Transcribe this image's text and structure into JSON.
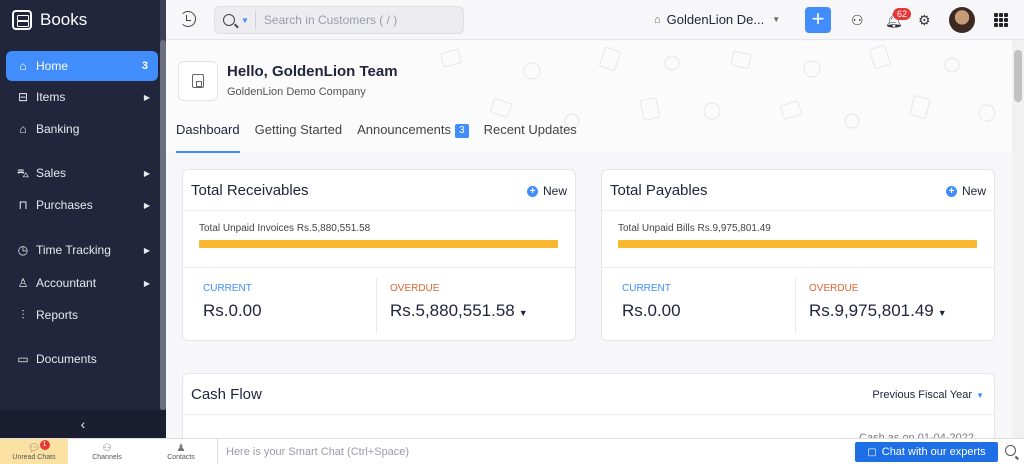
{
  "brand": {
    "name": "Books"
  },
  "sidebar": {
    "items": [
      {
        "label": "Home",
        "count": "3",
        "icon": "home-icon"
      },
      {
        "label": "Items",
        "icon": "items-icon"
      },
      {
        "label": "Banking",
        "icon": "bank-icon"
      },
      {
        "label": "Sales",
        "icon": "cart-icon"
      },
      {
        "label": "Purchases",
        "icon": "bag-icon"
      },
      {
        "label": "Time Tracking",
        "icon": "timer-icon"
      },
      {
        "label": "Accountant",
        "icon": "accountant-icon"
      },
      {
        "label": "Reports",
        "icon": "reports-icon"
      },
      {
        "label": "Documents",
        "icon": "folder-icon"
      }
    ],
    "collapse": "‹"
  },
  "header": {
    "search_placeholder": "Search in Customers ( / )",
    "org": "GoldenLion De...",
    "notif_count": "62"
  },
  "welcome": {
    "greeting": "Hello, GoldenLion Team",
    "org_name": "GoldenLion Demo Company"
  },
  "tabs": [
    {
      "label": "Dashboard"
    },
    {
      "label": "Getting Started"
    },
    {
      "label": "Announcements",
      "badge": "3"
    },
    {
      "label": "Recent Updates"
    }
  ],
  "receivables": {
    "title": "Total Receivables",
    "new_label": "New",
    "unpaid": "Total Unpaid Invoices Rs.5,880,551.58",
    "current_label": "CURRENT",
    "current": "Rs.0.00",
    "overdue_label": "OVERDUE",
    "overdue": "Rs.5,880,551.58"
  },
  "payables": {
    "title": "Total Payables",
    "new_label": "New",
    "unpaid": "Total Unpaid Bills Rs.9,975,801.49",
    "current_label": "CURRENT",
    "current": "Rs.0.00",
    "overdue_label": "OVERDUE",
    "overdue": "Rs.9,975,801.49"
  },
  "cashflow": {
    "title": "Cash Flow",
    "period": "Previous Fiscal Year",
    "asof": "Cash as on 01-04-2022"
  },
  "bottombar": {
    "unread": "Unread Chats",
    "unread_count": "1",
    "channels": "Channels",
    "contacts": "Contacts",
    "smart_chat": "Here is your Smart Chat (Ctrl+Space)",
    "experts": "Chat with our experts"
  },
  "colors": {
    "accent": "#408dfb",
    "sidebar": "#21263c",
    "bar": "#fab830",
    "overdue": "#e06633"
  }
}
